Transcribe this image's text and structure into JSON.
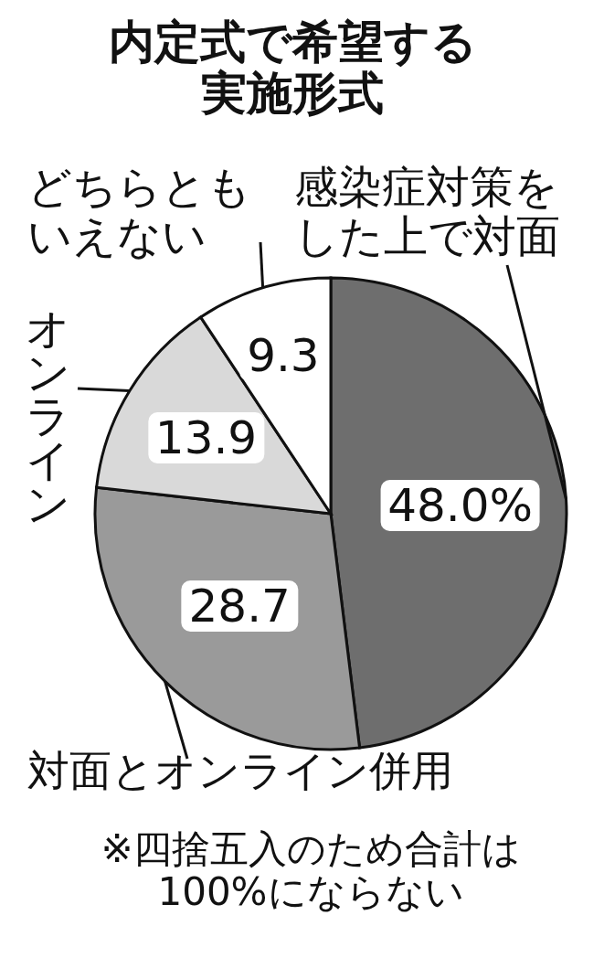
{
  "chart_data": {
    "type": "pie",
    "title": "内定式で希望する実施形式",
    "categories": [
      "感染症対策をした上で対面",
      "対面とオンライン併用",
      "オンライン",
      "どちらともいえない"
    ],
    "values": [
      48.0,
      28.7,
      13.9,
      9.3
    ],
    "value_labels": [
      "48.0%",
      "28.7",
      "13.9",
      "9.3"
    ],
    "colors": [
      "#6e6e6e",
      "#9a9a9a",
      "#d9d9d9",
      "#ffffff"
    ],
    "annotations": [
      "※四捨五入のため合計は100%にならない"
    ]
  }
}
